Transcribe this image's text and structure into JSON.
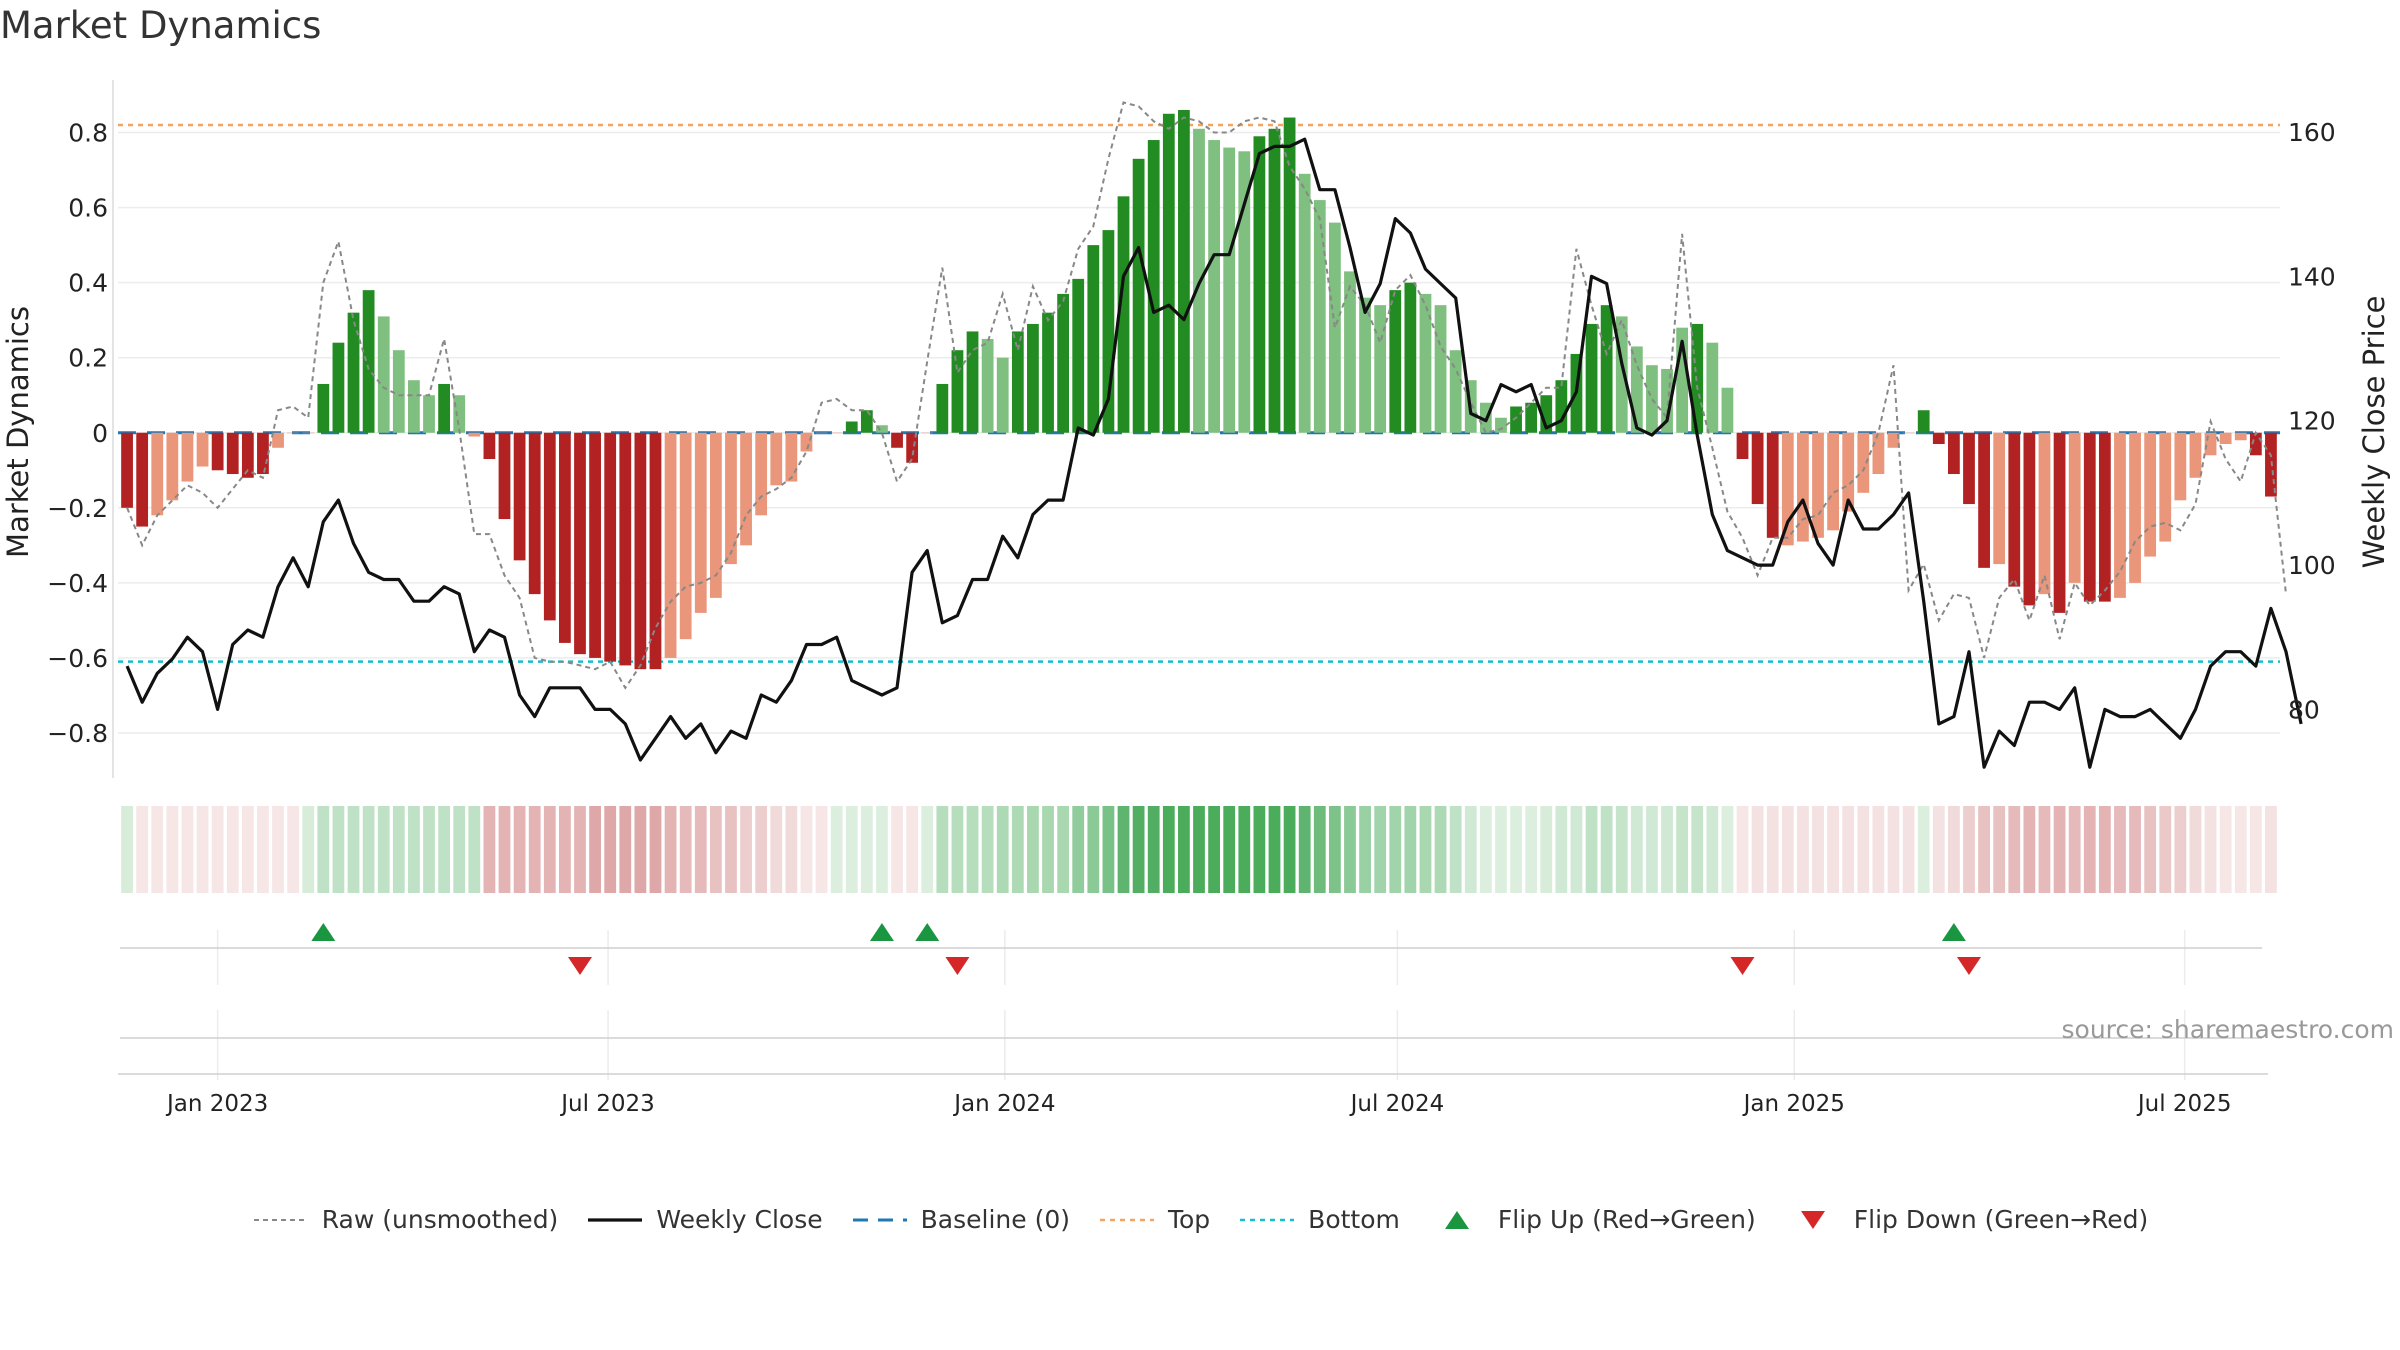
{
  "title": "Market Dynamics",
  "source": "source: sharemaestro.com",
  "colors": {
    "green_dark": "#228b22",
    "green_light": "#7fbf7f",
    "red_dark": "#b22222",
    "red_light": "#e9967a",
    "close_line": "#111111",
    "raw_line": "#888888",
    "baseline": "#1f77b4",
    "top": "#f4a460",
    "bottom": "#17becf",
    "flip_up": "#1a9641",
    "flip_down": "#d62728"
  },
  "legend": [
    {
      "key": "raw",
      "label": "Raw (unsmoothed)"
    },
    {
      "key": "close",
      "label": "Weekly Close"
    },
    {
      "key": "baseline",
      "label": "Baseline (0)"
    },
    {
      "key": "top",
      "label": "Top"
    },
    {
      "key": "bottom",
      "label": "Bottom"
    },
    {
      "key": "flip_up",
      "label": "Flip Up (Red→Green)"
    },
    {
      "key": "flip_down",
      "label": "Flip Down (Green→Red)"
    }
  ],
  "chart_data": {
    "type": "bar",
    "ylabel": "Market Dynamics",
    "y2label": "Weekly Close Price",
    "ylim": [
      -0.92,
      0.94
    ],
    "y2lim": [
      70.5,
      167.2
    ],
    "yticks": [
      "−0.8",
      "−0.6",
      "−0.4",
      "−0.2",
      "0",
      "0.2",
      "0.4",
      "0.6",
      "0.8"
    ],
    "yticks_values": [
      -0.8,
      -0.6,
      -0.4,
      -0.2,
      0,
      0.2,
      0.4,
      0.6,
      0.8
    ],
    "y2ticks": [
      "80",
      "100",
      "120",
      "140",
      "160"
    ],
    "y2ticks_values": [
      80,
      100,
      120,
      140,
      160
    ],
    "xticks": [
      "Jan 2023",
      "Jul 2023",
      "Jan 2024",
      "Jul 2024",
      "Jan 2025",
      "Jul 2025"
    ],
    "xticks_values": [
      "2023-01-01",
      "2023-07-01",
      "2024-01-01",
      "2024-07-01",
      "2025-01-01",
      "2025-07-01"
    ],
    "start_date": "2022-11-20",
    "interval_days": 7,
    "top_level": 0.82,
    "bottom_level": -0.61,
    "baseline": 0,
    "bars": [
      -0.2,
      -0.25,
      -0.22,
      -0.18,
      -0.13,
      -0.09,
      -0.1,
      -0.11,
      -0.12,
      -0.11,
      -0.04,
      0.0,
      0.0,
      0.13,
      0.24,
      0.32,
      0.38,
      0.31,
      0.22,
      0.14,
      0.1,
      0.13,
      0.1,
      -0.01,
      -0.07,
      -0.23,
      -0.34,
      -0.43,
      -0.5,
      -0.56,
      -0.59,
      -0.6,
      -0.61,
      -0.62,
      -0.63,
      -0.63,
      -0.6,
      -0.55,
      -0.48,
      -0.44,
      -0.35,
      -0.3,
      -0.22,
      -0.14,
      -0.13,
      -0.05,
      0.0,
      0.0,
      0.03,
      0.06,
      0.02,
      -0.04,
      -0.08,
      0.0,
      0.13,
      0.22,
      0.27,
      0.25,
      0.2,
      0.27,
      0.29,
      0.32,
      0.37,
      0.41,
      0.5,
      0.54,
      0.63,
      0.73,
      0.78,
      0.85,
      0.86,
      0.81,
      0.78,
      0.76,
      0.75,
      0.79,
      0.81,
      0.84,
      0.69,
      0.62,
      0.56,
      0.43,
      0.36,
      0.34,
      0.38,
      0.4,
      0.37,
      0.34,
      0.22,
      0.14,
      0.08,
      0.04,
      0.07,
      0.08,
      0.1,
      0.14,
      0.21,
      0.29,
      0.34,
      0.31,
      0.23,
      0.18,
      0.17,
      0.28,
      0.29,
      0.24,
      0.12,
      -0.07,
      -0.19,
      -0.28,
      -0.3,
      -0.29,
      -0.28,
      -0.26,
      -0.21,
      -0.16,
      -0.11,
      -0.04,
      0.0,
      0.06,
      -0.03,
      -0.11,
      -0.19,
      -0.36,
      -0.35,
      -0.41,
      -0.46,
      -0.43,
      -0.48,
      -0.4,
      -0.45,
      -0.45,
      -0.44,
      -0.4,
      -0.33,
      -0.29,
      -0.18,
      -0.12,
      -0.06,
      -0.03,
      -0.02,
      -0.06,
      -0.17
    ],
    "bar_colors": [
      "rd",
      "rd",
      "rl",
      "rl",
      "rl",
      "rl",
      "rd",
      "rd",
      "rd",
      "rd",
      "rl",
      "rl",
      "rl",
      "gd",
      "gd",
      "gd",
      "gd",
      "gl",
      "gl",
      "gl",
      "gl",
      "gd",
      "gl",
      "rl",
      "rd",
      "rd",
      "rd",
      "rd",
      "rd",
      "rd",
      "rd",
      "rd",
      "rd",
      "rd",
      "rd",
      "rd",
      "rl",
      "rl",
      "rl",
      "rl",
      "rl",
      "rl",
      "rl",
      "rl",
      "rl",
      "rl",
      "rl",
      "rl",
      "gd",
      "gd",
      "gl",
      "rd",
      "rd",
      "rl",
      "gd",
      "gd",
      "gd",
      "gl",
      "gl",
      "gd",
      "gd",
      "gd",
      "gd",
      "gd",
      "gd",
      "gd",
      "gd",
      "gd",
      "gd",
      "gd",
      "gd",
      "gl",
      "gl",
      "gl",
      "gl",
      "gd",
      "gd",
      "gd",
      "gl",
      "gl",
      "gl",
      "gl",
      "gl",
      "gl",
      "gd",
      "gd",
      "gl",
      "gl",
      "gl",
      "gl",
      "gl",
      "gl",
      "gd",
      "gd",
      "gd",
      "gd",
      "gd",
      "gd",
      "gd",
      "gl",
      "gl",
      "gl",
      "gl",
      "gl",
      "gd",
      "gl",
      "gl",
      "rd",
      "rd",
      "rd",
      "rl",
      "rl",
      "rl",
      "rl",
      "rl",
      "rl",
      "rl",
      "rl",
      "rl",
      "gd",
      "rd",
      "rd",
      "rd",
      "rd",
      "rl",
      "rd",
      "rd",
      "rl",
      "rd",
      "rl",
      "rd",
      "rd",
      "rl",
      "rl",
      "rl",
      "rl",
      "rl",
      "rl",
      "rl",
      "rl",
      "rl",
      "rd",
      "rd"
    ],
    "raw": [
      -0.2,
      -0.3,
      -0.22,
      -0.18,
      -0.14,
      -0.16,
      -0.2,
      -0.15,
      -0.1,
      -0.12,
      0.06,
      0.07,
      0.04,
      0.4,
      0.51,
      0.3,
      0.17,
      0.12,
      0.1,
      0.1,
      0.1,
      0.25,
      0.01,
      -0.27,
      -0.27,
      -0.38,
      -0.44,
      -0.6,
      -0.61,
      -0.61,
      -0.62,
      -0.63,
      -0.61,
      -0.68,
      -0.62,
      -0.52,
      -0.45,
      -0.41,
      -0.4,
      -0.38,
      -0.32,
      -0.22,
      -0.17,
      -0.15,
      -0.12,
      -0.05,
      0.08,
      0.09,
      0.06,
      0.06,
      0.0,
      -0.13,
      -0.07,
      0.19,
      0.44,
      0.16,
      0.22,
      0.24,
      0.37,
      0.22,
      0.39,
      0.3,
      0.35,
      0.49,
      0.55,
      0.73,
      0.88,
      0.87,
      0.83,
      0.81,
      0.84,
      0.83,
      0.8,
      0.8,
      0.83,
      0.84,
      0.83,
      0.71,
      0.65,
      0.57,
      0.28,
      0.39,
      0.34,
      0.24,
      0.38,
      0.42,
      0.34,
      0.23,
      0.17,
      0.08,
      0.0,
      0.01,
      0.04,
      0.08,
      0.12,
      0.12,
      0.49,
      0.34,
      0.21,
      0.3,
      0.18,
      0.09,
      0.04,
      0.53,
      0.12,
      -0.04,
      -0.21,
      -0.28,
      -0.38,
      -0.28,
      -0.28,
      -0.23,
      -0.22,
      -0.16,
      -0.14,
      -0.1,
      0.0,
      0.18,
      -0.42,
      -0.35,
      -0.5,
      -0.43,
      -0.44,
      -0.6,
      -0.44,
      -0.39,
      -0.5,
      -0.38,
      -0.55,
      -0.4,
      -0.46,
      -0.42,
      -0.37,
      -0.29,
      -0.25,
      -0.24,
      -0.26,
      -0.19,
      0.03,
      -0.07,
      -0.13,
      0.0,
      -0.06,
      -0.43
    ],
    "close": [
      86,
      81,
      85,
      87,
      90,
      88,
      80,
      89,
      91,
      90,
      97,
      101,
      97,
      106,
      109,
      103,
      99,
      98,
      98,
      95,
      95,
      97,
      96,
      88,
      91,
      90,
      82,
      79,
      83,
      83,
      83,
      80,
      80,
      78,
      73,
      76,
      79,
      76,
      78,
      74,
      77,
      76,
      82,
      81,
      84,
      89,
      89,
      90,
      84,
      83,
      82,
      83,
      99,
      102,
      92,
      93,
      98,
      98,
      104,
      101,
      107,
      109,
      109,
      119,
      118,
      123,
      140,
      144,
      135,
      136,
      134,
      139,
      143,
      143,
      150,
      157,
      158,
      158,
      159,
      152,
      152,
      144,
      135,
      139,
      148,
      146,
      141,
      139,
      137,
      121,
      120,
      125,
      124,
      125,
      119,
      120,
      124,
      140,
      139,
      128,
      119,
      118,
      120,
      131,
      118,
      107,
      102,
      101,
      100,
      100,
      106,
      109,
      103,
      100,
      109,
      105,
      105,
      107,
      110,
      95,
      78,
      79,
      88,
      72,
      77,
      75,
      81,
      81,
      80,
      83,
      72,
      80,
      79,
      79,
      80,
      78,
      76,
      80,
      86,
      88,
      88,
      86,
      94,
      88,
      78
    ],
    "heat_strip": [
      0.14,
      -0.1,
      -0.1,
      -0.1,
      -0.1,
      -0.1,
      -0.1,
      -0.1,
      -0.1,
      -0.1,
      -0.1,
      -0.1,
      0.14,
      0.22,
      0.22,
      0.22,
      0.22,
      0.22,
      0.22,
      0.22,
      0.22,
      0.22,
      0.22,
      0.22,
      -0.3,
      -0.3,
      -0.3,
      -0.3,
      -0.3,
      -0.3,
      -0.3,
      -0.35,
      -0.35,
      -0.35,
      -0.35,
      -0.35,
      -0.3,
      -0.28,
      -0.28,
      -0.25,
      -0.25,
      -0.2,
      -0.2,
      -0.15,
      -0.15,
      -0.1,
      -0.1,
      0.12,
      0.12,
      0.12,
      0.12,
      -0.1,
      -0.1,
      0.12,
      0.25,
      0.25,
      0.25,
      0.25,
      0.28,
      0.28,
      0.3,
      0.3,
      0.3,
      0.38,
      0.4,
      0.46,
      0.55,
      0.6,
      0.6,
      0.62,
      0.62,
      0.62,
      0.62,
      0.62,
      0.62,
      0.62,
      0.62,
      0.62,
      0.55,
      0.5,
      0.45,
      0.4,
      0.35,
      0.32,
      0.32,
      0.32,
      0.3,
      0.28,
      0.22,
      0.16,
      0.12,
      0.12,
      0.12,
      0.12,
      0.14,
      0.16,
      0.16,
      0.22,
      0.22,
      0.2,
      0.16,
      0.16,
      0.16,
      0.2,
      0.2,
      0.16,
      0.12,
      -0.1,
      -0.12,
      -0.12,
      -0.12,
      -0.12,
      -0.12,
      -0.12,
      -0.12,
      -0.12,
      -0.12,
      -0.12,
      -0.12,
      0.12,
      -0.12,
      -0.15,
      -0.2,
      -0.25,
      -0.25,
      -0.28,
      -0.3,
      -0.28,
      -0.3,
      -0.28,
      -0.3,
      -0.3,
      -0.28,
      -0.28,
      -0.25,
      -0.22,
      -0.2,
      -0.15,
      -0.12,
      -0.1,
      -0.1,
      -0.1,
      -0.12
    ],
    "flips_up": [
      "2023-02-19",
      "2023-11-05",
      "2023-11-26",
      "2025-03-16"
    ],
    "flips_down": [
      "2023-06-18",
      "2023-12-10",
      "2024-12-08",
      "2025-03-23"
    ]
  }
}
